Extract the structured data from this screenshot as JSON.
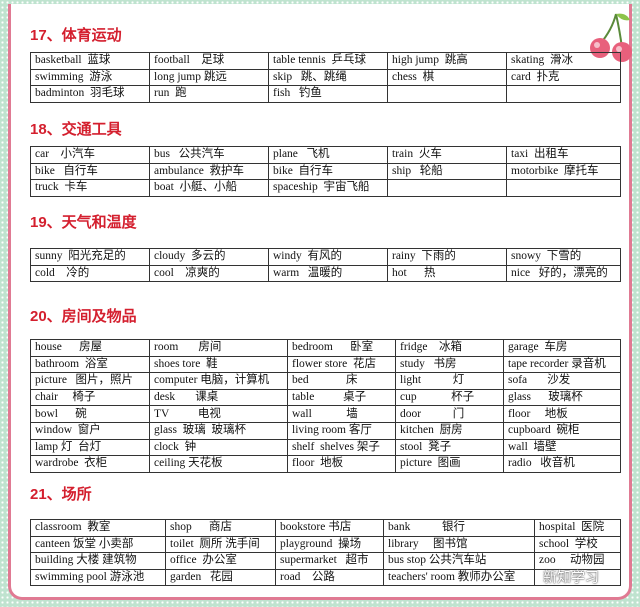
{
  "sections": [
    {
      "title": "17、体育运动",
      "cols": [
        119,
        119,
        119,
        119,
        114
      ],
      "rows": [
        [
          "basketball  蓝球",
          "football    足球",
          "table tennis  乒乓球",
          "high jump  跳高",
          "skating  滑冰"
        ],
        [
          "swimming  游泳",
          "long jump 跳远",
          "skip   跳、跳绳",
          "chess  棋",
          "card  扑克"
        ],
        [
          "badminton  羽毛球",
          "run  跑",
          "fish   钓鱼",
          "",
          ""
        ]
      ]
    },
    {
      "title": "18、交通工具",
      "cols": [
        119,
        119,
        119,
        119,
        114
      ],
      "rows": [
        [
          "car    小汽车",
          "bus   公共汽车",
          "plane   飞机",
          "train  火车",
          "taxi  出租车"
        ],
        [
          "bike   自行车",
          "ambulance  救护车",
          "bike  自行车",
          "ship   轮船",
          "motorbike  摩托车"
        ],
        [
          "truck  卡车",
          "boat  小艇、小船",
          "spaceship  宇宙飞船",
          "",
          ""
        ]
      ]
    },
    {
      "title": "19、天气和温度",
      "cols": [
        119,
        119,
        119,
        119,
        114
      ],
      "rows": [
        [
          "sunny  阳光充足的",
          "cloudy  多云的",
          "windy  有风的",
          "rainy  下雨的",
          "snowy  下雪的"
        ],
        [
          "cold    冷的",
          "cool    凉爽的",
          "warm   温暖的",
          "hot      热",
          "nice   好的，漂亮的"
        ]
      ]
    },
    {
      "title": "20、房间及物品",
      "cols": [
        119,
        138,
        108,
        108,
        117
      ],
      "rows": [
        [
          "house      房屋",
          "room       房间",
          "bedroom      卧室",
          "fridge    冰箱",
          "garage  车房"
        ],
        [
          "bathroom  浴室",
          "shoes tore  鞋",
          "flower store  花店",
          "study   书房",
          "tape recorder 录音机"
        ],
        [
          "picture   图片，照片",
          "computer 电脑，计算机",
          "bed             床",
          "light           灯",
          "sofa       沙发"
        ],
        [
          "chair     椅子",
          "desk       课桌",
          "table          桌子",
          "cup            杯子",
          "glass      玻璃杯"
        ],
        [
          "bowl      碗",
          "TV          电视",
          "wall            墙",
          "door           门",
          "floor     地板"
        ],
        [
          "window  窗户",
          "glass  玻璃  玻璃杯",
          "living room 客厅",
          "kitchen  厨房",
          "cupboard  碗柜"
        ],
        [
          "lamp 灯  台灯",
          "clock  钟",
          "shelf  shelves 架子",
          "stool  凳子",
          "wall  墙壁"
        ],
        [
          "wardrobe  衣柜",
          "ceiling 天花板",
          "floor  地板",
          "picture  图画",
          "radio   收音机"
        ]
      ]
    },
    {
      "title": "21、场所",
      "cols": [
        135,
        110,
        108,
        151,
        86
      ],
      "rows": [
        [
          "classroom  教室",
          "shop      商店",
          "bookstore 书店",
          "bank           银行",
          "hospital  医院"
        ],
        [
          "canteen 饭堂 小卖部",
          "toilet  厕所 洗手间",
          "playground  操场",
          "library     图书馆",
          "school  学校"
        ],
        [
          "building 大楼 建筑物",
          "office  办公室",
          "supermarket   超市",
          "bus stop 公共汽车站",
          "zoo     动物园"
        ],
        [
          "swimming pool 游泳池",
          "garden   花园",
          "road    公路",
          "teachers' room 教师办公室",
          ""
        ]
      ]
    }
  ],
  "watermark": "新知学习"
}
